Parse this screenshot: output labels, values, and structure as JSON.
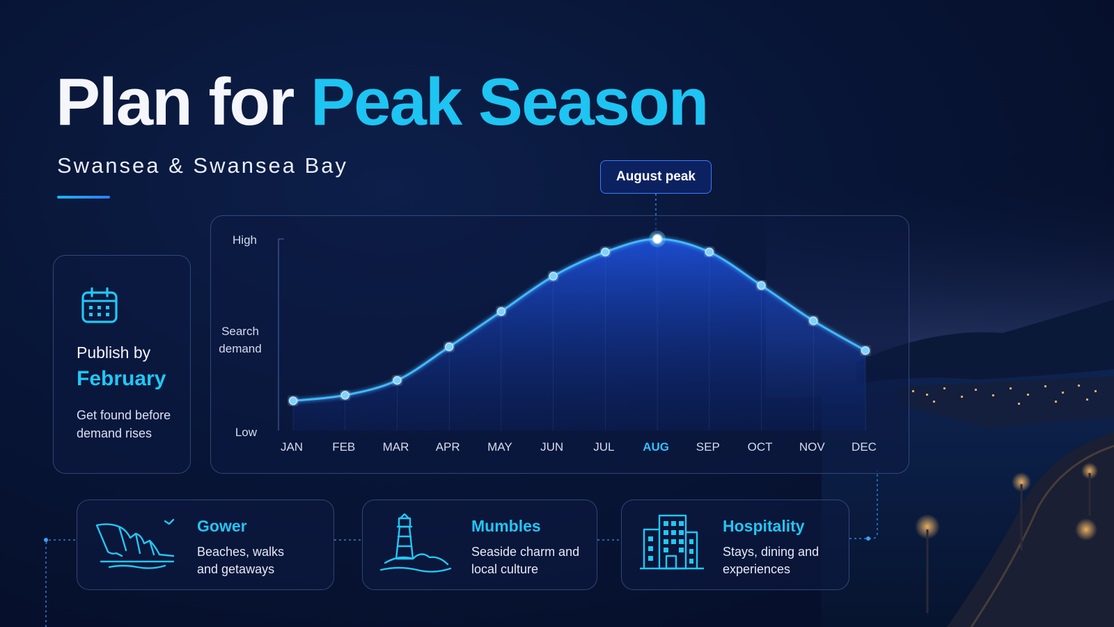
{
  "header": {
    "title_part1": "Plan for",
    "title_part2": "Peak Season",
    "subtitle": "Swansea & Swansea Bay"
  },
  "publish_card": {
    "icon": "calendar-icon",
    "line1": "Publish by",
    "line2": "February",
    "description": "Get found before demand rises"
  },
  "callout": {
    "label": "August peak"
  },
  "chart_data": {
    "type": "line",
    "ylabel": "Search demand",
    "yticks": [
      "High",
      "Low"
    ],
    "ylim": [
      0,
      100
    ],
    "categories": [
      "JAN",
      "FEB",
      "MAR",
      "APR",
      "MAY",
      "JUN",
      "JUL",
      "AUG",
      "SEP",
      "OCT",
      "NOV",
      "DEC"
    ],
    "highlight_category": "AUG",
    "series": [
      {
        "values": [
          13,
          16,
          24,
          42,
          61,
          80,
          93,
          100,
          93,
          75,
          56,
          40
        ]
      }
    ],
    "fill": "area-gradient",
    "grid": false
  },
  "cards": [
    {
      "icon": "cliffs-icon",
      "title": "Gower",
      "description": "Beaches, walks and getaways"
    },
    {
      "icon": "lighthouse-icon",
      "title": "Mumbles",
      "description": "Seaside charm and local culture"
    },
    {
      "icon": "building-icon",
      "title": "Hospitality",
      "description": "Stays, dining and experiences"
    }
  ],
  "colors": {
    "accent": "#1ec4f2",
    "line": "#42b8ff",
    "background": "#081536",
    "panel_border": "#3d5fa0"
  }
}
